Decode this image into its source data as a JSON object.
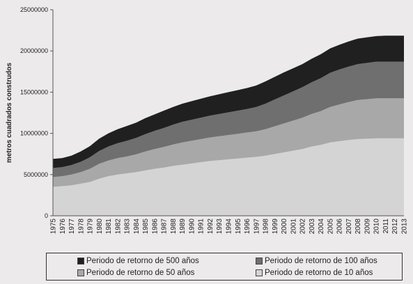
{
  "chart_data": {
    "type": "area",
    "stacked": true,
    "title": "",
    "xlabel": "",
    "ylabel": "metros cuadrados construdos",
    "ylim": [
      0,
      25000000
    ],
    "yticks": [
      "0",
      "5000000",
      "10000000",
      "15000000",
      "20000000",
      "25000000"
    ],
    "x": [
      "1975",
      "1976",
      "1977",
      "1978",
      "1979",
      "1980",
      "1981",
      "1982",
      "1983",
      "1984",
      "1985",
      "1986",
      "1987",
      "1988",
      "1989",
      "1990",
      "1991",
      "1992",
      "1993",
      "1994",
      "1995",
      "1996",
      "1997",
      "1998",
      "1999",
      "2000",
      "2001",
      "2002",
      "2003",
      "2004",
      "2005",
      "2006",
      "2007",
      "2008",
      "2009",
      "2010",
      "2011",
      "2012",
      "2013"
    ],
    "grid": false,
    "legend_position": "bottom",
    "series": [
      {
        "name": "Periodo de retorno de 10 años",
        "color": "#d4d4d4",
        "values": [
          3500000,
          3600000,
          3700000,
          3900000,
          4100000,
          4500000,
          4800000,
          5000000,
          5150000,
          5300000,
          5500000,
          5700000,
          5850000,
          6050000,
          6200000,
          6350000,
          6500000,
          6650000,
          6750000,
          6850000,
          6950000,
          7050000,
          7150000,
          7300000,
          7500000,
          7700000,
          7900000,
          8100000,
          8400000,
          8600000,
          8900000,
          9050000,
          9200000,
          9300000,
          9350000,
          9400000,
          9400000,
          9400000,
          9400000
        ]
      },
      {
        "name": "Periodo de retorno de 50 años",
        "color": "#a8a8a8",
        "values": [
          1200000,
          1200000,
          1300000,
          1400000,
          1600000,
          1800000,
          1900000,
          2000000,
          2050000,
          2150000,
          2300000,
          2400000,
          2500000,
          2600000,
          2700000,
          2750000,
          2800000,
          2850000,
          2900000,
          2950000,
          3000000,
          3050000,
          3100000,
          3200000,
          3350000,
          3500000,
          3650000,
          3800000,
          3950000,
          4100000,
          4300000,
          4450000,
          4600000,
          4750000,
          4800000,
          4850000,
          4850000,
          4850000,
          4850000
        ]
      },
      {
        "name": "Periodo de retorno de 100 años",
        "color": "#6f6f6f",
        "values": [
          1100000,
          1100000,
          1150000,
          1250000,
          1400000,
          1550000,
          1700000,
          1800000,
          1900000,
          2000000,
          2100000,
          2200000,
          2300000,
          2400000,
          2500000,
          2550000,
          2600000,
          2650000,
          2700000,
          2750000,
          2800000,
          2850000,
          2950000,
          3100000,
          3250000,
          3400000,
          3550000,
          3700000,
          3850000,
          4000000,
          4150000,
          4250000,
          4300000,
          4350000,
          4400000,
          4450000,
          4450000,
          4450000,
          4450000
        ]
      },
      {
        "name": "Periodo de retorno de 500 años",
        "color": "#202020",
        "values": [
          1100000,
          1100000,
          1150000,
          1250000,
          1350000,
          1500000,
          1600000,
          1700000,
          1800000,
          1850000,
          1950000,
          2000000,
          2100000,
          2150000,
          2200000,
          2250000,
          2300000,
          2350000,
          2400000,
          2450000,
          2500000,
          2550000,
          2600000,
          2700000,
          2750000,
          2800000,
          2800000,
          2800000,
          2850000,
          2900000,
          2950000,
          3000000,
          3050000,
          3100000,
          3100000,
          3100000,
          3150000,
          3150000,
          3150000
        ]
      }
    ]
  },
  "legend": {
    "items": [
      {
        "label": "Periodo de retorno de 500 años",
        "color": "#202020"
      },
      {
        "label": "Periodo de retorno de 100 años",
        "color": "#6f6f6f"
      },
      {
        "label": "Periodo de retorno de 50 años",
        "color": "#a8a8a8"
      },
      {
        "label": "Periodo de retorno de 10 años",
        "color": "#d4d4d4"
      }
    ]
  }
}
